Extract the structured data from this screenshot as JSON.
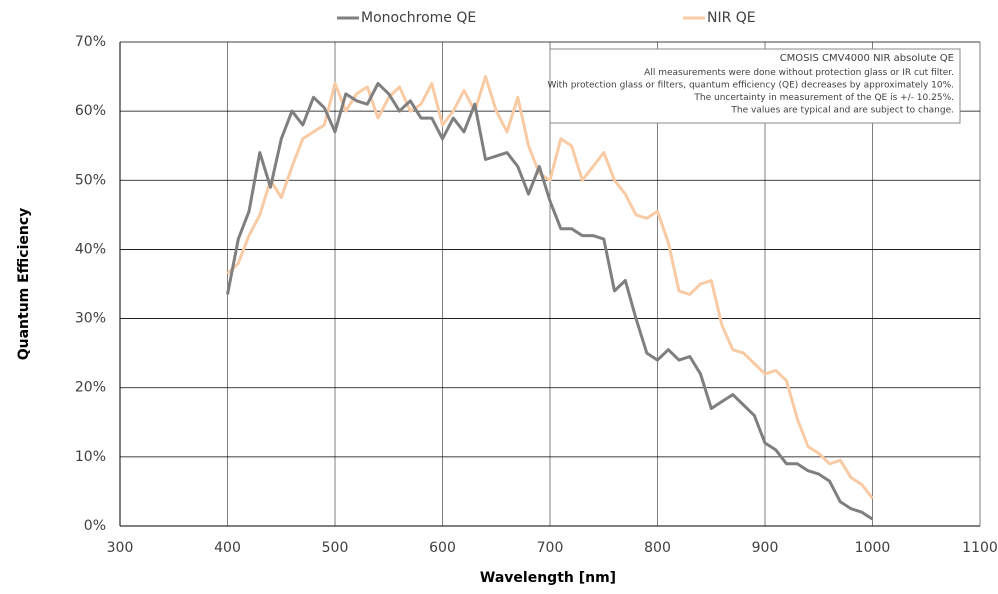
{
  "chart_data": {
    "type": "line",
    "x_label": "Wavelength [nm]",
    "y_label": "Quantum Efficiency",
    "annotations": [
      "CMOSIS CMV4000 NIR absolute QE",
      "All measurements were done without protection glass or IR cut filter.",
      "With protection glass or filters, quantum efficiency (QE) decreases by approximately 10%.",
      "The uncertainty in measurement of the QE is +/- 10.25%.",
      "The values are typical and are subject to change."
    ],
    "x": [
      400,
      410,
      420,
      430,
      440,
      450,
      460,
      470,
      480,
      490,
      500,
      510,
      520,
      530,
      540,
      550,
      560,
      570,
      580,
      590,
      600,
      610,
      620,
      630,
      640,
      650,
      660,
      670,
      680,
      690,
      700,
      710,
      720,
      730,
      740,
      750,
      760,
      770,
      780,
      790,
      800,
      810,
      820,
      830,
      840,
      850,
      860,
      870,
      880,
      890,
      900,
      910,
      920,
      930,
      940,
      950,
      960,
      970,
      980,
      990,
      1000
    ],
    "series": [
      {
        "name": "Monochrome QE",
        "color": "#7f7f7f",
        "values": [
          33.5,
          41.5,
          45.5,
          54,
          49,
          56,
          60,
          58,
          62,
          60.5,
          57,
          62.5,
          61.5,
          61,
          64,
          62.5,
          60,
          61.5,
          59,
          59,
          56,
          59,
          57,
          61,
          53,
          53.5,
          54,
          52,
          48,
          52,
          47,
          43,
          43,
          42,
          42,
          41.5,
          34,
          35.5,
          30,
          25,
          24,
          25.5,
          24,
          24.5,
          22,
          17,
          18,
          19,
          17.5,
          16,
          12,
          11,
          9,
          9,
          8,
          7.5,
          6.5,
          3.5,
          2.5,
          2,
          1
        ]
      },
      {
        "name": "NIR QE",
        "color": "#f8cba5",
        "values": [
          36.5,
          38,
          42,
          45,
          50,
          47.5,
          52,
          56,
          57,
          58,
          64,
          60,
          62.5,
          63.5,
          59,
          62,
          63.5,
          60,
          61,
          64,
          58,
          60,
          63,
          60,
          65,
          60,
          57,
          62,
          55,
          51,
          50,
          56,
          55,
          50,
          52,
          54,
          50,
          48,
          45,
          44.5,
          45.5,
          41,
          34,
          33.5,
          35,
          35.5,
          29,
          25.5,
          25,
          23.5,
          22,
          22.5,
          21,
          15.5,
          11.5,
          10.5,
          9,
          9.5,
          7,
          6,
          4
        ]
      }
    ],
    "xlim": [
      300,
      1100
    ],
    "xticks": [
      300,
      400,
      500,
      600,
      700,
      800,
      900,
      1000,
      1100
    ],
    "ylim": [
      0,
      70
    ],
    "yticks": [
      {
        "value": 0,
        "label": "0%"
      },
      {
        "value": 10,
        "label": "10%"
      },
      {
        "value": 20,
        "label": "20%"
      },
      {
        "value": 30,
        "label": "30%"
      },
      {
        "value": 40,
        "label": "40%"
      },
      {
        "value": 50,
        "label": "50%"
      },
      {
        "value": 60,
        "label": "60%"
      },
      {
        "value": 70,
        "label": "70%"
      }
    ],
    "grid": true
  }
}
